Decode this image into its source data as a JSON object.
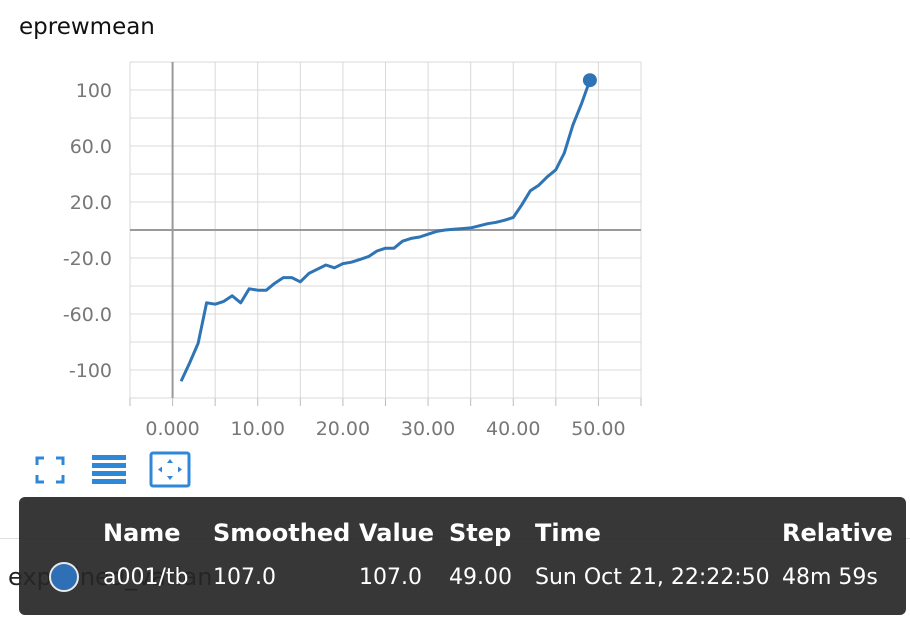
{
  "title": "eprewmean",
  "chart_data": {
    "type": "line",
    "title": "eprewmean",
    "xlabel": "",
    "ylabel": "",
    "x_ticks": [
      "0.000",
      "10.00",
      "20.00",
      "30.00",
      "40.00",
      "50.00"
    ],
    "y_ticks": [
      "100",
      "60.0",
      "20.0",
      "-20.0",
      "-60.0",
      "-100"
    ],
    "xlim": [
      -5,
      55
    ],
    "ylim": [
      -120,
      120
    ],
    "grid": true,
    "series": [
      {
        "color": "#2f74b5",
        "x": [
          1,
          2,
          3,
          4,
          5,
          6,
          7,
          8,
          9,
          10,
          11,
          12,
          13,
          14,
          15,
          16,
          17,
          18,
          19,
          20,
          21,
          22,
          23,
          24,
          25,
          26,
          27,
          28,
          29,
          30,
          31,
          32,
          33,
          34,
          35,
          36,
          37,
          38,
          39,
          40,
          41,
          42,
          43,
          44,
          45,
          46,
          47,
          48,
          49
        ],
        "y": [
          -108,
          -95,
          -81,
          -52,
          -53,
          -51,
          -47,
          -52,
          -42,
          -43,
          -43,
          -38,
          -34,
          -34,
          -37,
          -31,
          -28,
          -25,
          -27,
          -24,
          -23,
          -21,
          -19,
          -15,
          -13,
          -13,
          -8,
          -6,
          -5,
          -3,
          -1,
          0,
          0.5,
          1,
          1.5,
          3,
          4.5,
          5.5,
          7,
          9,
          18,
          28,
          32,
          38,
          43,
          55,
          75,
          90,
          107
        ]
      }
    ],
    "highlight": {
      "x": 49,
      "y": 107
    }
  },
  "toolbar": {
    "expand_icon": "fullscreen-icon",
    "data_icon": "list-icon",
    "fit_icon": "fit-domain-icon"
  },
  "background_label": "explained_varian",
  "tooltip": {
    "headers": {
      "name": "Name",
      "smoothed": "Smoothed",
      "value": "Value",
      "step": "Step",
      "time": "Time",
      "relative": "Relative"
    },
    "row": {
      "name": "a001/tb",
      "smoothed": "107.0",
      "value": "107.0",
      "step": "49.00",
      "time": "Sun Oct 21, 22:22:50",
      "relative": "48m 59s",
      "dot_color": "#2f6fb5"
    }
  }
}
